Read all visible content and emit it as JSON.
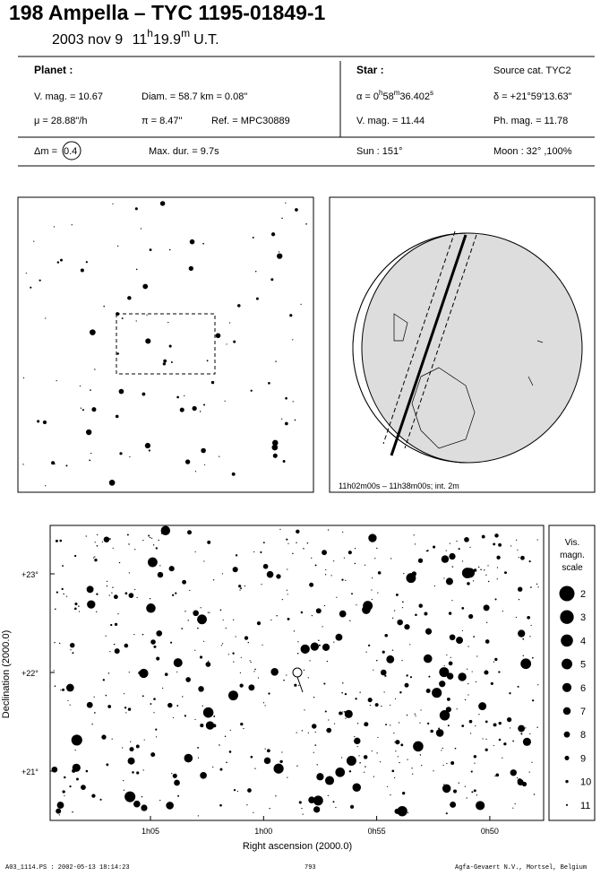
{
  "header": {
    "title": "198 Ampella  –  TYC 1195-01849-1",
    "date": "2003 nov  9",
    "hours": "11",
    "h": "h",
    "minutes": "19.9",
    "m": "m",
    "ut": "U.T."
  },
  "planet": {
    "heading": "Planet :",
    "vmag": "V. mag. = 10.67",
    "diam": "Diam. = 58.7 km = 0.08\"",
    "mu": "μ =  28.88\"/h",
    "pi": "π =  8.47\"",
    "ref": "Ref. = MPC30889"
  },
  "star": {
    "heading": "Star :",
    "source": "Source cat.  TYC2",
    "alpha": "α =  0",
    "ah": "h",
    "am": "58",
    "amu": "m",
    "as": "36.402",
    "asu": "s",
    "delta": "δ = +21°59'13.63\"",
    "vmag": "V. mag. = 11.44",
    "phmag": "Ph. mag. = 11.78"
  },
  "event": {
    "dm_label": "Δm =",
    "dm": "0.4",
    "maxdur": "Max. dur. = 9.7s",
    "sun": "Sun : 151°",
    "moon": "Moon :  32° ,100%"
  },
  "globe": {
    "caption": "11h02m00s – 11h38m00s; int.  2m"
  },
  "chart": {
    "y_label": "Declination (2000.0)",
    "x_label": "Right ascension (2000.0)",
    "yticks": [
      "+23°",
      "+22°",
      "+21°"
    ],
    "xticks": [
      "1h05",
      "1h00",
      "0h55",
      "0h50"
    ]
  },
  "scale": {
    "title": [
      "Vis.",
      "magn.",
      "scale"
    ],
    "levels": [
      "2",
      "3",
      "4",
      "5",
      "6",
      "7",
      "8",
      "9",
      "10",
      "11"
    ]
  },
  "footer": {
    "left": "A03_1114.PS : 2002-05-13 18:14:23",
    "center": "793",
    "right": "Agfa-Gevaert N.V., Mortsel, Belgium"
  }
}
